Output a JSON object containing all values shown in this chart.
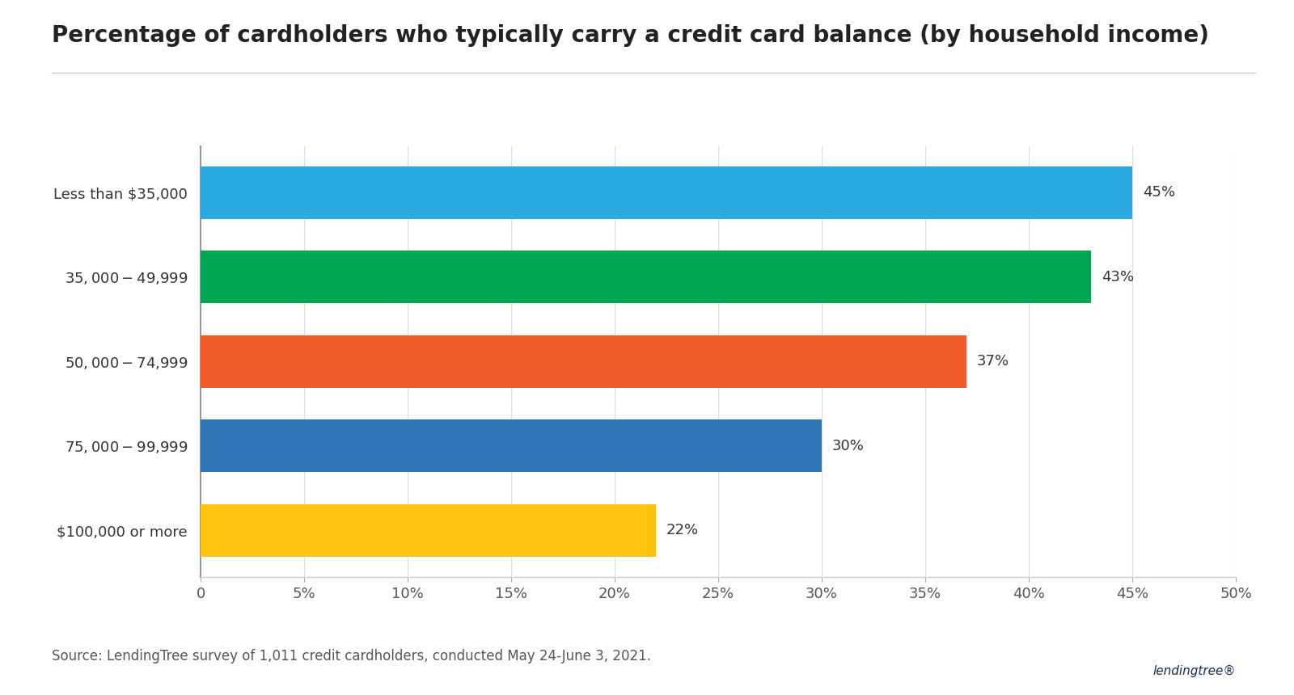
{
  "title": "Percentage of cardholders who typically carry a credit card balance (by household income)",
  "categories": [
    "Less than $35,000",
    "$35,000-$49,999",
    "$50,000-$74,999",
    "$75,000-$99,999",
    "$100,000 or more"
  ],
  "values": [
    45,
    43,
    37,
    30,
    22
  ],
  "bar_colors": [
    "#29ABE2",
    "#00A651",
    "#F15A29",
    "#2E75B6",
    "#FFC20E"
  ],
  "xlim": [
    0,
    50
  ],
  "xtick_values": [
    0,
    5,
    10,
    15,
    20,
    25,
    30,
    35,
    40,
    45,
    50
  ],
  "xtick_labels": [
    "0",
    "5%",
    "10%",
    "15%",
    "20%",
    "25%",
    "30%",
    "35%",
    "40%",
    "45%",
    "50%"
  ],
  "source_text": "Source: LendingTree survey of 1,011 credit cardholders, conducted May 24-June 3, 2021.",
  "background_color": "#ffffff",
  "title_fontsize": 20,
  "label_fontsize": 13,
  "tick_fontsize": 13,
  "source_fontsize": 12,
  "bar_height": 0.62
}
